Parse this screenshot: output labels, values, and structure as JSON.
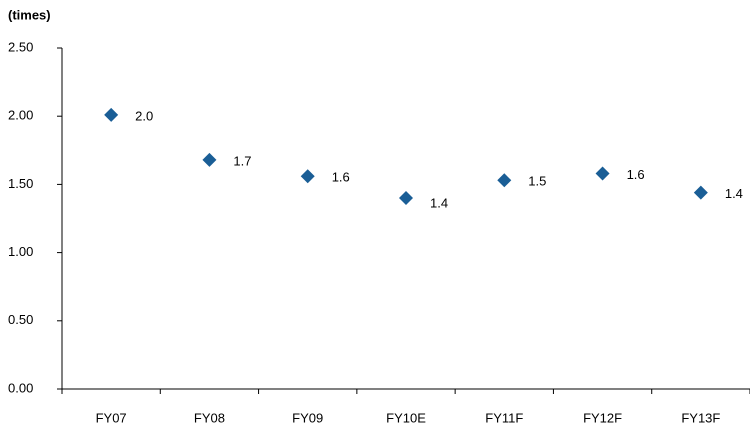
{
  "chart_data": {
    "type": "scatter",
    "y_label": "(times)",
    "categories": [
      "FY07",
      "FY08",
      "FY09",
      "FY10E",
      "FY11F",
      "FY12F",
      "FY13F"
    ],
    "values": [
      2.01,
      1.68,
      1.56,
      1.4,
      1.53,
      1.58,
      1.44
    ],
    "value_labels": [
      "2.0",
      "1.7",
      "1.6",
      "1.4",
      "1.5",
      "1.6",
      "1.4"
    ],
    "color": "#1a5e96",
    "ylim": [
      0,
      2.5
    ],
    "yticks": [
      {
        "value": 0,
        "label": "0.00"
      },
      {
        "value": 0.5,
        "label": "0.50"
      },
      {
        "value": 1,
        "label": "1.00"
      },
      {
        "value": 1.5,
        "label": "1.50"
      },
      {
        "value": 2,
        "label": "2.00"
      },
      {
        "value": 2.5,
        "label": "2.50"
      }
    ]
  }
}
